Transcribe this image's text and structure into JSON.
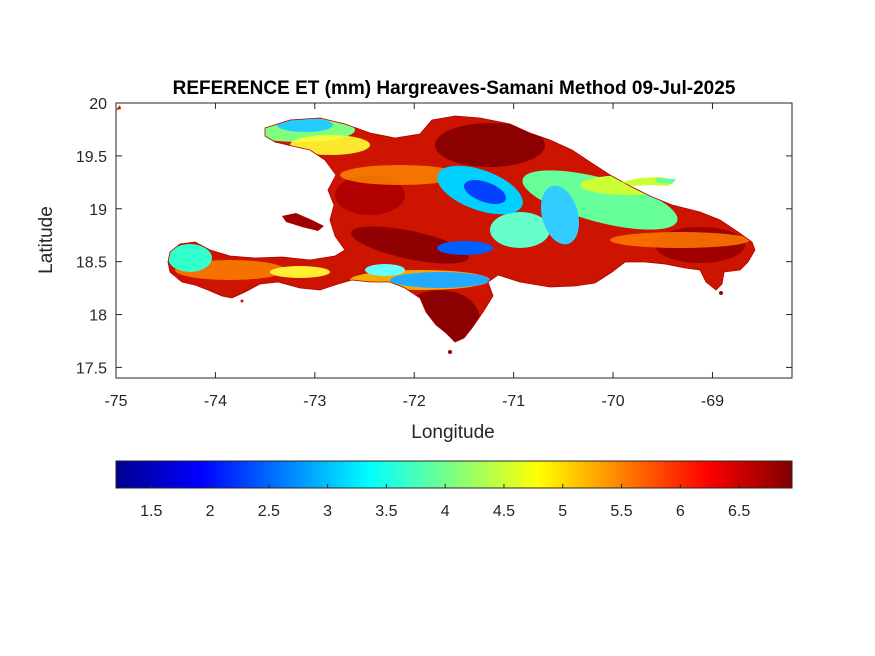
{
  "title": "REFERENCE ET (mm) Hargreaves-Samani Method  09-Jul-2025",
  "map": {
    "xlabel": "Longitude",
    "ylabel": "Latitude",
    "xlim": [
      -75,
      -68.2
    ],
    "ylim": [
      17.4,
      20
    ],
    "x_ticks": [
      "-75",
      "-74",
      "-73",
      "-72",
      "-71",
      "-70",
      "-69"
    ],
    "y_ticks": [
      "20",
      "19.5",
      "19",
      "18.5",
      "18",
      "17.5"
    ]
  },
  "colorbar": {
    "colormap": "jet",
    "clim": [
      1.2,
      6.95
    ],
    "tick_labels": [
      "1.5",
      "2",
      "2.5",
      "3",
      "3.5",
      "4",
      "4.5",
      "5",
      "5.5",
      "6",
      "6.5"
    ],
    "colors": [
      "#00008f",
      "#0000ff",
      "#00ffff",
      "#ffff00",
      "#ff0000",
      "#800000"
    ]
  }
}
